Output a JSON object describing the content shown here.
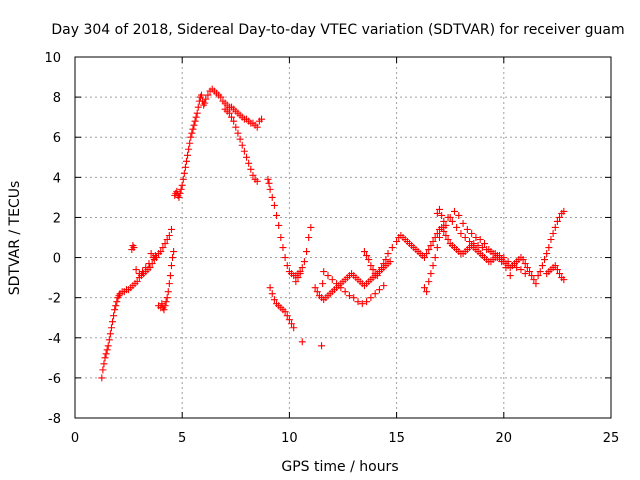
{
  "chart_data": {
    "type": "scatter",
    "title": "Day 304 of 2018, Sidereal Day-to-day VTEC variation (SDTVAR) for receiver guam",
    "xlabel": "GPS time / hours",
    "ylabel": "SDTVAR / TECUs",
    "xlim": [
      0,
      25
    ],
    "ylim": [
      -8,
      10
    ],
    "xticks": [
      0,
      5,
      10,
      15,
      20,
      25
    ],
    "yticks": [
      -8,
      -6,
      -4,
      -2,
      0,
      2,
      4,
      6,
      8,
      10
    ],
    "grid": true,
    "marker": "plus",
    "color": "#ff0000",
    "series": [
      {
        "name": "SDTVAR",
        "x": [
          1.25,
          1.3,
          1.35,
          1.4,
          1.45,
          1.5,
          1.55,
          1.6,
          1.65,
          1.7,
          1.75,
          1.8,
          1.85,
          1.9,
          1.95,
          2.0,
          2.05,
          2.1,
          2.2,
          2.3,
          2.4,
          2.5,
          2.6,
          2.7,
          2.8,
          2.9,
          3.0,
          3.1,
          3.2,
          3.3,
          3.4,
          3.5,
          3.6,
          3.7,
          3.8,
          3.9,
          4.0,
          4.1,
          4.2,
          4.3,
          4.4,
          4.5,
          2.65,
          2.7,
          2.75,
          2.85,
          3.0,
          3.15,
          3.3,
          3.45,
          3.55,
          3.65,
          3.75,
          3.9,
          4.0,
          4.05,
          4.1,
          4.15,
          4.2,
          4.25,
          4.3,
          4.35,
          4.4,
          4.45,
          4.5,
          4.55,
          4.6,
          4.65,
          4.7,
          4.75,
          4.8,
          4.85,
          4.9,
          4.95,
          5.0,
          5.05,
          5.1,
          5.15,
          5.2,
          5.25,
          5.3,
          5.35,
          5.4,
          5.45,
          5.5,
          5.55,
          5.6,
          5.65,
          5.7,
          5.75,
          5.8,
          5.85,
          5.9,
          5.95,
          6.0,
          6.05,
          6.1,
          6.2,
          6.3,
          6.4,
          6.5,
          6.6,
          6.7,
          6.8,
          6.9,
          7.0,
          7.1,
          7.2,
          7.3,
          7.4,
          7.5,
          7.6,
          7.7,
          7.8,
          7.9,
          8.0,
          8.1,
          8.2,
          8.3,
          8.4,
          8.5,
          8.6,
          8.7,
          7.0,
          7.1,
          7.2,
          7.3,
          7.4,
          7.5,
          7.6,
          7.7,
          7.8,
          7.9,
          8.0,
          8.1,
          8.2,
          8.3,
          8.4,
          8.5,
          9.0,
          9.05,
          9.1,
          9.2,
          9.3,
          9.4,
          9.5,
          9.6,
          9.7,
          9.8,
          9.9,
          10.0,
          10.1,
          10.2,
          10.3,
          10.4,
          10.5,
          10.6,
          10.7,
          10.8,
          10.9,
          11.0,
          9.1,
          9.2,
          9.3,
          9.4,
          9.5,
          9.6,
          9.7,
          9.8,
          9.9,
          10.0,
          10.1,
          10.2,
          10.3,
          10.4,
          10.5,
          10.6,
          11.5,
          11.55,
          11.2,
          11.3,
          11.4,
          11.5,
          11.6,
          11.7,
          11.8,
          11.9,
          12.0,
          12.1,
          12.2,
          12.3,
          12.4,
          12.5,
          12.6,
          12.7,
          12.8,
          12.9,
          13.0,
          13.1,
          13.2,
          13.3,
          13.4,
          13.5,
          13.6,
          13.7,
          13.8,
          13.9,
          14.0,
          14.1,
          14.2,
          14.3,
          14.4,
          14.5,
          14.6,
          14.7,
          11.6,
          11.8,
          12.0,
          12.2,
          12.4,
          12.6,
          12.8,
          13.0,
          13.2,
          13.4,
          13.6,
          13.8,
          14.0,
          14.2,
          14.4,
          13.5,
          13.6,
          13.7,
          13.8,
          13.9,
          14.0,
          14.1,
          14.2,
          14.3,
          14.4,
          14.5,
          14.6,
          14.8,
          15.0,
          15.1,
          15.2,
          15.3,
          15.4,
          15.5,
          15.6,
          15.7,
          15.8,
          15.9,
          16.0,
          16.1,
          16.2,
          16.3,
          16.4,
          16.5,
          16.6,
          16.7,
          16.8,
          16.9,
          17.0,
          17.1,
          17.2,
          17.3,
          17.4,
          17.5,
          17.6,
          17.7,
          17.8,
          17.9,
          18.0,
          18.1,
          18.2,
          18.3,
          18.4,
          18.5,
          18.6,
          18.7,
          18.8,
          18.9,
          19.0,
          19.1,
          19.2,
          19.3,
          19.4,
          19.5,
          19.6,
          19.7,
          19.8,
          19.9,
          20.0,
          20.1,
          20.2,
          20.3,
          20.4,
          20.5,
          20.6,
          20.7,
          20.8,
          20.9,
          21.0,
          21.1,
          21.2,
          21.3,
          21.4,
          21.5,
          16.3,
          16.4,
          16.5,
          16.6,
          16.7,
          16.8,
          16.9,
          17.0,
          17.2,
          17.4,
          17.6,
          17.8,
          18.0,
          18.2,
          18.4,
          18.6,
          18.8,
          19.0,
          19.2,
          19.4,
          19.6,
          19.8,
          20.0,
          20.2,
          20.4,
          20.6,
          20.8,
          21.0,
          16.9,
          17.0,
          17.1,
          17.2,
          17.3,
          17.5,
          17.7,
          17.9,
          18.1,
          18.3,
          18.5,
          18.7,
          18.9,
          19.1,
          19.3,
          19.5,
          19.7,
          19.9,
          20.1,
          20.3,
          21.6,
          21.7,
          21.8,
          21.9,
          22.0,
          22.1,
          22.2,
          22.3,
          22.4,
          22.5,
          22.6,
          22.7,
          22.8,
          22.0,
          22.1,
          22.2,
          22.3,
          22.4,
          22.5,
          22.6,
          22.7,
          22.8
        ],
        "y": [
          -6.0,
          -5.6,
          -5.3,
          -5.0,
          -4.8,
          -4.6,
          -4.4,
          -4.1,
          -3.8,
          -3.5,
          -3.2,
          -2.9,
          -2.6,
          -2.4,
          -2.2,
          -2.0,
          -1.9,
          -1.8,
          -1.7,
          -1.7,
          -1.6,
          -1.6,
          -1.5,
          -1.4,
          -1.3,
          -1.2,
          -1.0,
          -0.9,
          -0.8,
          -0.7,
          -0.6,
          -0.5,
          -0.3,
          -0.1,
          0.0,
          0.2,
          0.3,
          0.5,
          0.7,
          0.9,
          1.1,
          1.4,
          0.4,
          0.6,
          0.5,
          -0.6,
          -0.8,
          -0.7,
          -0.5,
          -0.3,
          0.2,
          0.0,
          0.1,
          -2.4,
          -2.5,
          -2.3,
          -2.5,
          -2.6,
          -2.4,
          -2.2,
          -2.0,
          -1.7,
          -1.3,
          -0.9,
          -0.4,
          0.0,
          0.3,
          3.1,
          3.2,
          3.3,
          3.1,
          3.0,
          3.2,
          3.4,
          3.6,
          3.9,
          4.2,
          4.5,
          4.8,
          5.1,
          5.4,
          5.7,
          6.0,
          6.2,
          6.4,
          6.6,
          6.8,
          7.0,
          7.2,
          7.5,
          7.8,
          8.0,
          8.1,
          7.8,
          7.6,
          7.7,
          7.9,
          8.1,
          8.3,
          8.4,
          8.3,
          8.2,
          8.1,
          8.0,
          7.8,
          7.7,
          7.6,
          7.5,
          7.5,
          7.4,
          7.3,
          7.2,
          7.1,
          7.0,
          6.9,
          6.9,
          6.8,
          6.7,
          6.7,
          6.6,
          6.5,
          6.8,
          6.9,
          7.4,
          7.3,
          7.2,
          7.0,
          6.8,
          6.5,
          6.2,
          5.9,
          5.6,
          5.3,
          5.0,
          4.7,
          4.4,
          4.1,
          3.9,
          3.8,
          3.9,
          3.7,
          3.4,
          3.0,
          2.6,
          2.1,
          1.6,
          1.0,
          0.5,
          0.0,
          -0.4,
          -0.7,
          -0.8,
          -0.9,
          -0.9,
          -0.8,
          -0.7,
          -0.5,
          -0.2,
          0.3,
          1.0,
          1.5,
          -1.5,
          -1.8,
          -2.1,
          -2.3,
          -2.4,
          -2.5,
          -2.6,
          -2.7,
          -2.9,
          -3.1,
          -3.3,
          -3.5,
          -1.2,
          -1.0,
          -0.8,
          -4.2,
          -4.4,
          -1.3,
          -1.5,
          -1.7,
          -1.9,
          -2.0,
          -2.1,
          -2.0,
          -1.9,
          -1.8,
          -1.7,
          -1.6,
          -1.5,
          -1.4,
          -1.3,
          -1.2,
          -1.1,
          -1.0,
          -0.9,
          -0.8,
          -0.9,
          -1.0,
          -1.1,
          -1.2,
          -1.3,
          -1.4,
          -1.3,
          -1.2,
          -1.1,
          -1.0,
          -0.9,
          -0.8,
          -0.7,
          -0.6,
          -0.5,
          -0.4,
          -0.3,
          -0.2,
          -0.7,
          -0.9,
          -1.1,
          -1.3,
          -1.5,
          -1.7,
          -1.9,
          -2.0,
          -2.2,
          -2.3,
          -2.2,
          -2.0,
          -1.8,
          -1.6,
          -1.4,
          0.3,
          0.1,
          -0.1,
          -0.4,
          -0.6,
          -0.8,
          -0.9,
          -0.7,
          -0.5,
          -0.3,
          -0.1,
          0.2,
          0.5,
          0.8,
          1.0,
          1.1,
          1.0,
          0.9,
          0.8,
          0.7,
          0.6,
          0.5,
          0.4,
          0.3,
          0.2,
          0.1,
          0.0,
          0.2,
          0.4,
          0.6,
          0.8,
          1.0,
          1.2,
          1.4,
          1.5,
          1.3,
          1.1,
          0.9,
          0.7,
          0.6,
          0.5,
          0.4,
          0.3,
          0.2,
          0.2,
          0.3,
          0.4,
          0.5,
          0.6,
          0.5,
          0.4,
          0.3,
          0.2,
          0.1,
          0.0,
          -0.1,
          -0.2,
          -0.2,
          -0.1,
          0.0,
          0.1,
          0.0,
          -0.1,
          -0.2,
          -0.3,
          -0.4,
          -0.5,
          -0.4,
          -0.3,
          -0.2,
          -0.1,
          0.0,
          -0.1,
          -0.3,
          -0.5,
          -0.7,
          -0.9,
          -1.1,
          -1.3,
          -1.5,
          -1.7,
          -1.2,
          -0.8,
          -0.4,
          0.0,
          0.5,
          1.0,
          1.5,
          2.0,
          1.8,
          1.5,
          1.2,
          1.0,
          0.8,
          0.7,
          0.6,
          0.5,
          0.4,
          0.3,
          0.2,
          0.1,
          0.0,
          -0.2,
          -0.4,
          -0.5,
          -0.6,
          -0.8,
          2.2,
          2.4,
          2.1,
          1.8,
          1.6,
          2.0,
          2.3,
          2.1,
          1.7,
          1.4,
          1.2,
          1.0,
          0.9,
          0.7,
          0.4,
          0.2,
          0.0,
          -0.2,
          -0.5,
          -0.9,
          -0.9,
          -0.7,
          -0.4,
          -0.1,
          0.2,
          0.5,
          0.9,
          1.2,
          1.5,
          1.8,
          2.0,
          2.2,
          2.3,
          -0.8,
          -0.7,
          -0.6,
          -0.5,
          -0.4,
          -0.6,
          -0.8,
          -1.0,
          -1.1
        ]
      }
    ]
  }
}
